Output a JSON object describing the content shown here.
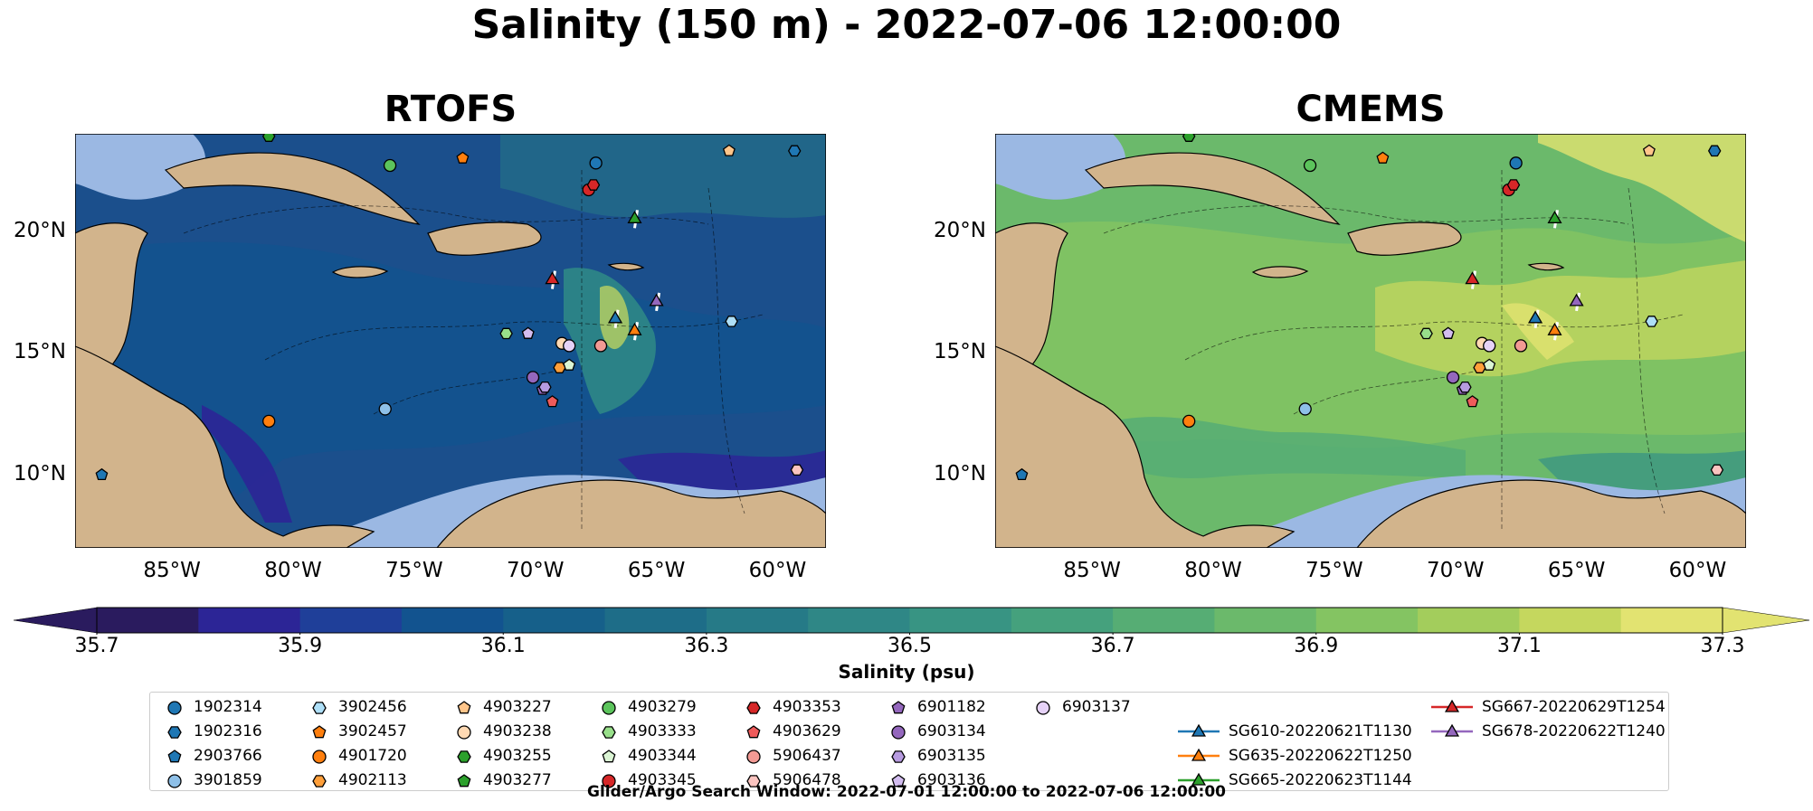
{
  "title": "Salinity (150 m) - 2022-07-06 12:00:00",
  "panels": [
    {
      "title": "RTOFS"
    },
    {
      "title": "CMEMS"
    }
  ],
  "axes": {
    "x_labels": [
      "85°W",
      "80°W",
      "75°W",
      "70°W",
      "65°W",
      "60°W"
    ],
    "y_labels": [
      "20°N",
      "15°N",
      "10°N"
    ],
    "lon_range": [
      -89,
      -58
    ],
    "lat_range": [
      7,
      24
    ]
  },
  "colorbar": {
    "label": "Salinity (psu)",
    "ticks": [
      "35.7",
      "35.9",
      "36.1",
      "36.3",
      "36.5",
      "36.7",
      "36.9",
      "37.1",
      "37.3"
    ],
    "range": [
      35.7,
      37.3
    ],
    "colormap": "haline",
    "colors": [
      "#2a1b5e",
      "#2c2596",
      "#1f3f99",
      "#12538f",
      "#16608a",
      "#1e6d88",
      "#267a87",
      "#2f8786",
      "#389483",
      "#45a17d",
      "#56ad74",
      "#6bb96b",
      "#84c462",
      "#a3cd5c",
      "#c5d75e",
      "#e2e371"
    ],
    "extend": "both"
  },
  "legend": {
    "items": [
      {
        "label": "1902314",
        "marker": "circle",
        "color": "#1f77b4"
      },
      {
        "label": "1902316",
        "marker": "hexagon",
        "color": "#1f77b4"
      },
      {
        "label": "2903766",
        "marker": "pentagon",
        "color": "#1f77b4"
      },
      {
        "label": "3901859",
        "marker": "circle",
        "color": "#8ec0e8"
      },
      {
        "label": "3902456",
        "marker": "hexagon",
        "color": "#aedff7"
      },
      {
        "label": "3902457",
        "marker": "pentagon",
        "color": "#ff7f0e"
      },
      {
        "label": "4901720",
        "marker": "circle",
        "color": "#ff7f0e"
      },
      {
        "label": "4902113",
        "marker": "hexagon",
        "color": "#ff9f3a"
      },
      {
        "label": "4903227",
        "marker": "pentagon",
        "color": "#ffc58a"
      },
      {
        "label": "4903238",
        "marker": "circle",
        "color": "#ffd9b3"
      },
      {
        "label": "4903255",
        "marker": "hexagon",
        "color": "#2ca02c"
      },
      {
        "label": "4903277",
        "marker": "pentagon",
        "color": "#2ca02c"
      },
      {
        "label": "4903279",
        "marker": "circle",
        "color": "#5cc45c"
      },
      {
        "label": "4903333",
        "marker": "hexagon",
        "color": "#98df8a"
      },
      {
        "label": "4903344",
        "marker": "pentagon",
        "color": "#dbf5d4"
      },
      {
        "label": "4903345",
        "marker": "circle",
        "color": "#d62728"
      },
      {
        "label": "4903353",
        "marker": "hexagon",
        "color": "#d62728"
      },
      {
        "label": "4903629",
        "marker": "pentagon",
        "color": "#ef5b5b"
      },
      {
        "label": "5906437",
        "marker": "circle",
        "color": "#f29a94"
      },
      {
        "label": "5906478",
        "marker": "hexagon",
        "color": "#fbc4c0"
      },
      {
        "label": "6901182",
        "marker": "pentagon",
        "color": "#9467bd"
      },
      {
        "label": "6903134",
        "marker": "circle",
        "color": "#9467bd"
      },
      {
        "label": "6903135",
        "marker": "hexagon",
        "color": "#b79be0"
      },
      {
        "label": "6903136",
        "marker": "pentagon",
        "color": "#d3bdf0"
      },
      {
        "label": "6903137",
        "marker": "circle",
        "color": "#e6d2f7"
      },
      {
        "label": "SG610-20220621T1130",
        "marker": "triangle-line",
        "color": "#1f77b4"
      },
      {
        "label": "SG635-20220622T1250",
        "marker": "triangle-line",
        "color": "#ff7f0e"
      },
      {
        "label": "SG665-20220623T1144",
        "marker": "triangle-line",
        "color": "#2ca02c"
      },
      {
        "label": "SG667-20220629T1254",
        "marker": "triangle-line",
        "color": "#d62728"
      },
      {
        "label": "SG678-20220622T1240",
        "marker": "triangle-line",
        "color": "#9467bd"
      }
    ]
  },
  "footer": "Glider/Argo Search Window: 2022-07-01 12:00:00 to 2022-07-06 12:00:00",
  "colors": {
    "land": "#d2b48c",
    "shelf": "#9bb8e3",
    "marker_edge": "#000000"
  }
}
